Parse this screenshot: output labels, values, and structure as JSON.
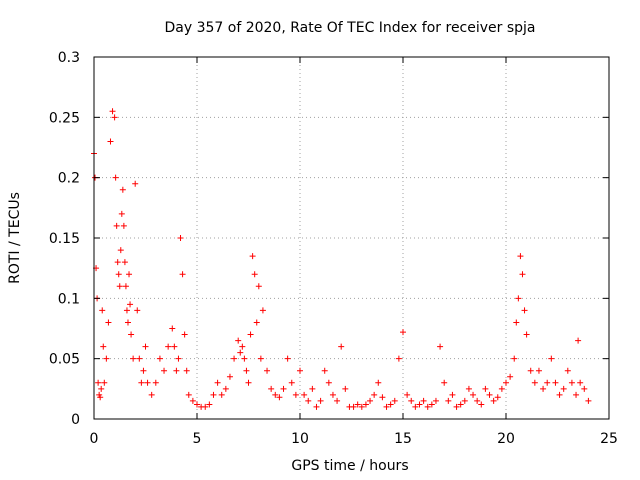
{
  "chart_data": {
    "type": "scatter",
    "title": "Day 357 of 2020, Rate Of TEC Index for receiver spja",
    "xlabel": "GPS time / hours",
    "ylabel": "ROTI / TECUs",
    "xlim": [
      0,
      25
    ],
    "ylim": [
      0,
      0.3
    ],
    "x_ticks": [
      "0",
      "5",
      "10",
      "15",
      "20",
      "25"
    ],
    "y_ticks": [
      "0",
      "0.05",
      "0.1",
      "0.15",
      "0.2",
      "0.25",
      "0.3"
    ],
    "grid": true,
    "marker": "plus",
    "colors": {
      "series": "#ff0000",
      "grid": "#a0a0a0"
    },
    "series": [
      {
        "name": "",
        "x": [
          0.0,
          0.05,
          0.1,
          0.15,
          0.2,
          0.25,
          0.3,
          0.35,
          0.4,
          0.45,
          0.5,
          0.6,
          0.7,
          0.8,
          0.9,
          1.0,
          1.05,
          1.1,
          1.15,
          1.2,
          1.25,
          1.3,
          1.35,
          1.4,
          1.45,
          1.5,
          1.55,
          1.6,
          1.65,
          1.7,
          1.75,
          1.8,
          1.9,
          2.0,
          2.1,
          2.2,
          2.3,
          2.4,
          2.5,
          2.6,
          2.8,
          3.0,
          3.2,
          3.4,
          3.6,
          3.8,
          3.9,
          4.0,
          4.1,
          4.2,
          4.3,
          4.4,
          4.5,
          4.6,
          4.8,
          5.0,
          5.2,
          5.4,
          5.6,
          5.8,
          6.0,
          6.2,
          6.4,
          6.6,
          6.8,
          7.0,
          7.1,
          7.2,
          7.3,
          7.4,
          7.5,
          7.6,
          7.7,
          7.8,
          7.9,
          8.0,
          8.1,
          8.2,
          8.4,
          8.6,
          8.8,
          9.0,
          9.2,
          9.4,
          9.6,
          9.8,
          10.0,
          10.2,
          10.4,
          10.6,
          10.8,
          11.0,
          11.2,
          11.4,
          11.6,
          11.8,
          12.0,
          12.2,
          12.4,
          12.6,
          12.8,
          13.0,
          13.2,
          13.4,
          13.6,
          13.8,
          14.0,
          14.2,
          14.4,
          14.6,
          14.8,
          15.0,
          15.2,
          15.4,
          15.6,
          15.8,
          16.0,
          16.2,
          16.4,
          16.6,
          16.8,
          17.0,
          17.2,
          17.4,
          17.6,
          17.8,
          18.0,
          18.2,
          18.4,
          18.6,
          18.8,
          19.0,
          19.2,
          19.4,
          19.6,
          19.8,
          20.0,
          20.2,
          20.4,
          20.5,
          20.6,
          20.7,
          20.8,
          20.9,
          21.0,
          21.2,
          21.4,
          21.6,
          21.8,
          22.0,
          22.2,
          22.4,
          22.6,
          22.8,
          23.0,
          23.2,
          23.4,
          23.5,
          23.6,
          23.8,
          24.0
        ],
        "y": [
          0.22,
          0.2,
          0.125,
          0.1,
          0.03,
          0.02,
          0.018,
          0.025,
          0.09,
          0.06,
          0.03,
          0.05,
          0.08,
          0.23,
          0.255,
          0.25,
          0.2,
          0.16,
          0.13,
          0.12,
          0.11,
          0.14,
          0.17,
          0.19,
          0.16,
          0.13,
          0.11,
          0.09,
          0.08,
          0.12,
          0.095,
          0.07,
          0.05,
          0.195,
          0.09,
          0.05,
          0.03,
          0.04,
          0.06,
          0.03,
          0.02,
          0.03,
          0.05,
          0.04,
          0.06,
          0.075,
          0.06,
          0.04,
          0.05,
          0.15,
          0.12,
          0.07,
          0.04,
          0.02,
          0.015,
          0.012,
          0.01,
          0.01,
          0.012,
          0.02,
          0.03,
          0.02,
          0.025,
          0.035,
          0.05,
          0.065,
          0.055,
          0.06,
          0.05,
          0.04,
          0.03,
          0.07,
          0.135,
          0.12,
          0.08,
          0.11,
          0.05,
          0.09,
          0.04,
          0.025,
          0.02,
          0.018,
          0.025,
          0.05,
          0.03,
          0.02,
          0.04,
          0.02,
          0.015,
          0.025,
          0.01,
          0.015,
          0.04,
          0.03,
          0.02,
          0.015,
          0.06,
          0.025,
          0.01,
          0.01,
          0.012,
          0.01,
          0.012,
          0.015,
          0.02,
          0.03,
          0.018,
          0.01,
          0.012,
          0.015,
          0.05,
          0.072,
          0.02,
          0.015,
          0.01,
          0.012,
          0.015,
          0.01,
          0.012,
          0.015,
          0.06,
          0.03,
          0.015,
          0.02,
          0.01,
          0.012,
          0.015,
          0.025,
          0.02,
          0.015,
          0.012,
          0.025,
          0.02,
          0.015,
          0.018,
          0.025,
          0.03,
          0.035,
          0.05,
          0.08,
          0.1,
          0.135,
          0.12,
          0.09,
          0.07,
          0.04,
          0.03,
          0.04,
          0.025,
          0.03,
          0.05,
          0.03,
          0.02,
          0.025,
          0.04,
          0.03,
          0.02,
          0.065,
          0.03,
          0.025,
          0.015
        ]
      }
    ]
  }
}
